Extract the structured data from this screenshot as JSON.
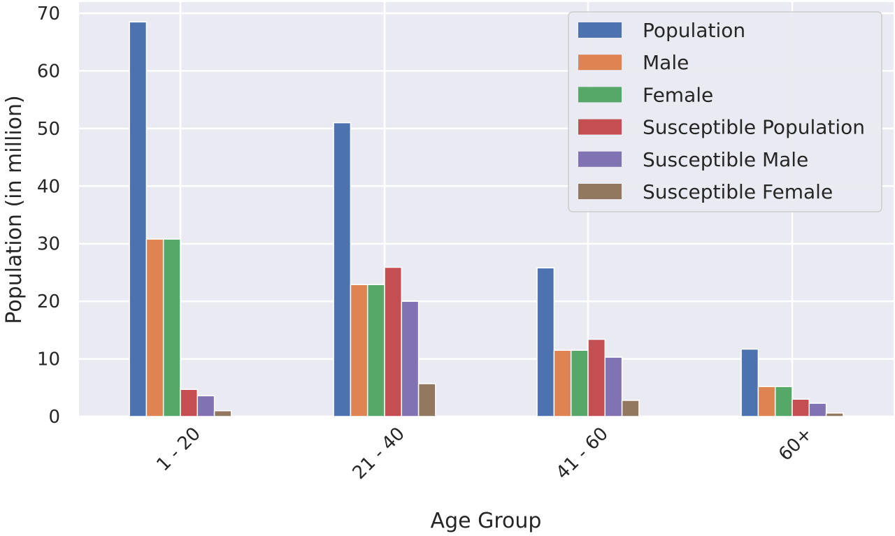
{
  "chart_data": {
    "type": "bar",
    "xlabel": "Age Group",
    "ylabel": "Population (in million)",
    "categories": [
      "1 - 20",
      "21 - 40",
      "41 - 60",
      "60+"
    ],
    "ylim": [
      0,
      70
    ],
    "yticks": [
      0,
      10,
      20,
      30,
      40,
      50,
      60,
      70
    ],
    "grid": true,
    "legend_position": "top-right",
    "series": [
      {
        "name": "Population",
        "color": "#4c72b0",
        "values": [
          68.5,
          51.0,
          25.8,
          11.7
        ]
      },
      {
        "name": "Male",
        "color": "#dd8452",
        "values": [
          30.8,
          22.9,
          11.5,
          5.2
        ]
      },
      {
        "name": "Female",
        "color": "#55a868",
        "values": [
          30.8,
          22.9,
          11.5,
          5.2
        ]
      },
      {
        "name": "Susceptible Population",
        "color": "#c44e52",
        "values": [
          4.7,
          25.9,
          13.4,
          3.0
        ]
      },
      {
        "name": "Susceptible Male",
        "color": "#8172b3",
        "values": [
          3.6,
          20.0,
          10.3,
          2.3
        ]
      },
      {
        "name": "Susceptible Female",
        "color": "#937860",
        "values": [
          1.0,
          5.7,
          2.8,
          0.6
        ]
      }
    ]
  }
}
